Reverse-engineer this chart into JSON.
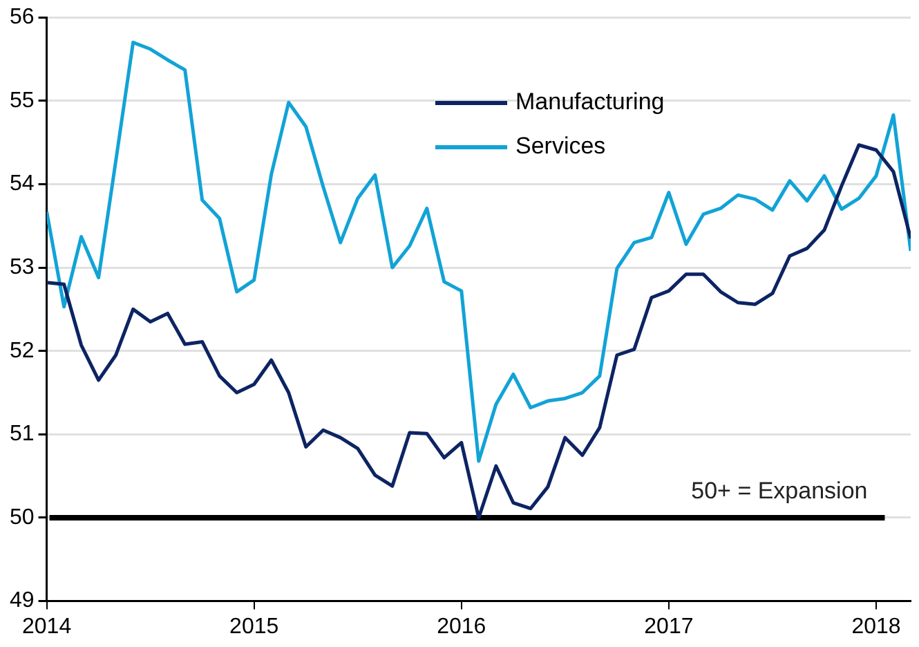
{
  "chart_data": {
    "type": "line",
    "x": [
      "2014-01",
      "2014-02",
      "2014-03",
      "2014-04",
      "2014-05",
      "2014-06",
      "2014-07",
      "2014-08",
      "2014-09",
      "2014-10",
      "2014-11",
      "2014-12",
      "2015-01",
      "2015-02",
      "2015-03",
      "2015-04",
      "2015-05",
      "2015-06",
      "2015-07",
      "2015-08",
      "2015-09",
      "2015-10",
      "2015-11",
      "2015-12",
      "2016-01",
      "2016-02",
      "2016-03",
      "2016-04",
      "2016-05",
      "2016-06",
      "2016-07",
      "2016-08",
      "2016-09",
      "2016-10",
      "2016-11",
      "2016-12",
      "2017-01",
      "2017-02",
      "2017-03",
      "2017-04",
      "2017-05",
      "2017-06",
      "2017-07",
      "2017-08",
      "2017-09",
      "2017-10",
      "2017-11",
      "2017-12",
      "2018-01",
      "2018-02",
      "2018-03"
    ],
    "series": [
      {
        "name": "Manufacturing",
        "color": "#0d2463",
        "values": [
          52.82,
          52.8,
          52.07,
          51.65,
          51.95,
          52.5,
          52.35,
          52.45,
          52.08,
          52.11,
          51.7,
          51.5,
          51.6,
          51.89,
          51.5,
          50.85,
          51.05,
          50.96,
          50.83,
          50.51,
          50.38,
          51.02,
          51.01,
          50.72,
          50.9,
          50.0,
          50.62,
          50.18,
          50.11,
          50.37,
          50.96,
          50.75,
          51.08,
          51.95,
          52.02,
          52.64,
          52.72,
          52.92,
          52.92,
          52.71,
          52.58,
          52.56,
          52.69,
          53.14,
          53.23,
          53.45,
          53.98,
          54.47,
          54.41,
          54.15,
          53.35
        ]
      },
      {
        "name": "Services",
        "color": "#12a3d6",
        "values": [
          53.67,
          52.53,
          53.37,
          52.88,
          54.28,
          55.7,
          55.62,
          55.49,
          55.37,
          53.81,
          53.59,
          52.71,
          52.85,
          54.12,
          54.98,
          54.69,
          53.97,
          53.3,
          53.83,
          54.11,
          53.0,
          53.26,
          53.71,
          52.83,
          52.72,
          50.68,
          51.36,
          51.72,
          51.32,
          51.4,
          51.43,
          51.5,
          51.7,
          52.99,
          53.3,
          53.36,
          53.9,
          53.28,
          53.64,
          53.71,
          53.87,
          53.82,
          53.69,
          54.04,
          53.8,
          54.1,
          53.7,
          53.83,
          54.1,
          54.83,
          53.2
        ]
      }
    ],
    "xlim": [
      "2014-01",
      "2018-03"
    ],
    "xticks": [
      {
        "value": "2014-01",
        "label": "2014"
      },
      {
        "value": "2015-01",
        "label": "2015"
      },
      {
        "value": "2016-01",
        "label": "2016"
      },
      {
        "value": "2017-01",
        "label": "2017"
      },
      {
        "value": "2018-01",
        "label": "2018"
      }
    ],
    "ylim": [
      49,
      56
    ],
    "yticks": [
      49,
      50,
      51,
      52,
      53,
      54,
      55,
      56
    ],
    "ref_lines": [
      {
        "axis": "y",
        "value": 50,
        "label": "50+ = Expansion",
        "color": "#000000"
      }
    ],
    "grid": "y",
    "legend": "top",
    "marker": "none",
    "line_style": "solid"
  }
}
